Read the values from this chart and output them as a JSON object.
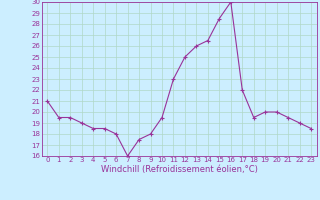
{
  "x": [
    0,
    1,
    2,
    3,
    4,
    5,
    6,
    7,
    8,
    9,
    10,
    11,
    12,
    13,
    14,
    15,
    16,
    17,
    18,
    19,
    20,
    21,
    22,
    23
  ],
  "y": [
    21,
    19.5,
    19.5,
    19,
    18.5,
    18.5,
    18,
    16,
    17.5,
    18,
    19.5,
    23,
    25,
    26,
    26.5,
    28.5,
    30,
    22,
    19.5,
    20,
    20,
    19.5,
    19,
    18.5
  ],
  "ylim": [
    16,
    30
  ],
  "xlim": [
    -0.5,
    23.5
  ],
  "yticks": [
    16,
    17,
    18,
    19,
    20,
    21,
    22,
    23,
    24,
    25,
    26,
    27,
    28,
    29,
    30
  ],
  "xticks": [
    0,
    1,
    2,
    3,
    4,
    5,
    6,
    7,
    8,
    9,
    10,
    11,
    12,
    13,
    14,
    15,
    16,
    17,
    18,
    19,
    20,
    21,
    22,
    23
  ],
  "xlabel": "Windchill (Refroidissement éolien,°C)",
  "line_color": "#993399",
  "bg_color": "#cceeff",
  "grid_color": "#b0d8c8",
  "tick_fontsize": 5,
  "label_fontsize": 6
}
